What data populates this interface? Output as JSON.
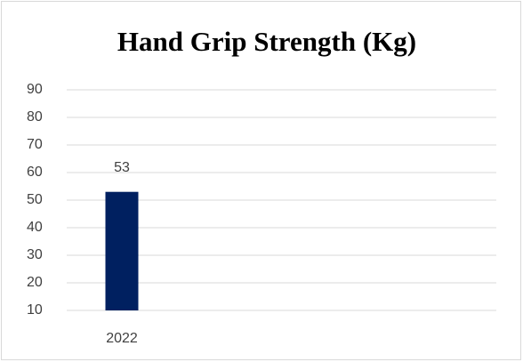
{
  "chart_data": {
    "type": "bar",
    "title": "Hand Grip Strength (Kg)",
    "categories": [
      "2022"
    ],
    "values": [
      53
    ],
    "color": "#002060",
    "ylim": [
      10,
      90
    ],
    "yticks": [
      10,
      20,
      30,
      40,
      50,
      60,
      70,
      80,
      90
    ],
    "grid": true
  }
}
